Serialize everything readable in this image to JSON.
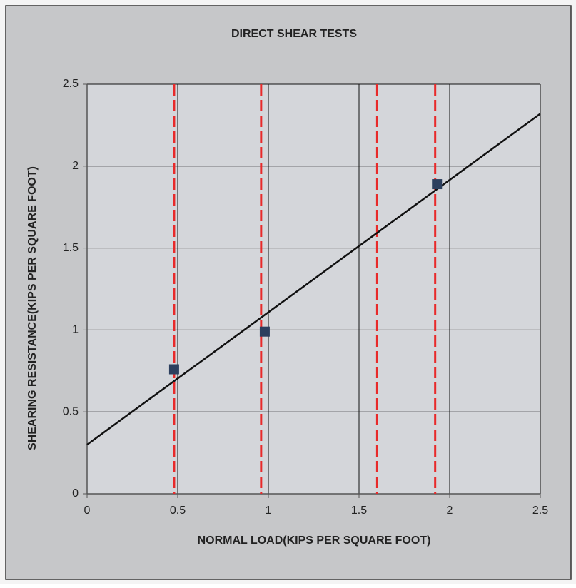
{
  "chart_data": {
    "type": "scatter",
    "title": "DIRECT SHEAR TESTS",
    "xlabel": "NORMAL LOAD(KIPS PER SQUARE FOOT)",
    "ylabel": "SHEARING RESISTANCE(KIPS PER SQUARE FOOT)",
    "xlim": [
      0,
      2.5
    ],
    "ylim": [
      0,
      2.5
    ],
    "xticks": [
      0,
      0.5,
      1,
      1.5,
      2,
      2.5
    ],
    "yticks": [
      0,
      0.5,
      1,
      1.5,
      2,
      2.5
    ],
    "grid": true,
    "series": [
      {
        "x": [
          0.48,
          0.98,
          1.93
        ],
        "values": [
          0.76,
          0.99,
          1.89
        ],
        "color": "#2c3f5e"
      }
    ],
    "trend_line": {
      "x": [
        0,
        2.5
      ],
      "values": [
        0.3,
        2.32
      ],
      "color": "#111111"
    },
    "vertical_lines": {
      "x": [
        0.48,
        0.96,
        1.6,
        1.92
      ],
      "color": "#e82a2a"
    }
  }
}
